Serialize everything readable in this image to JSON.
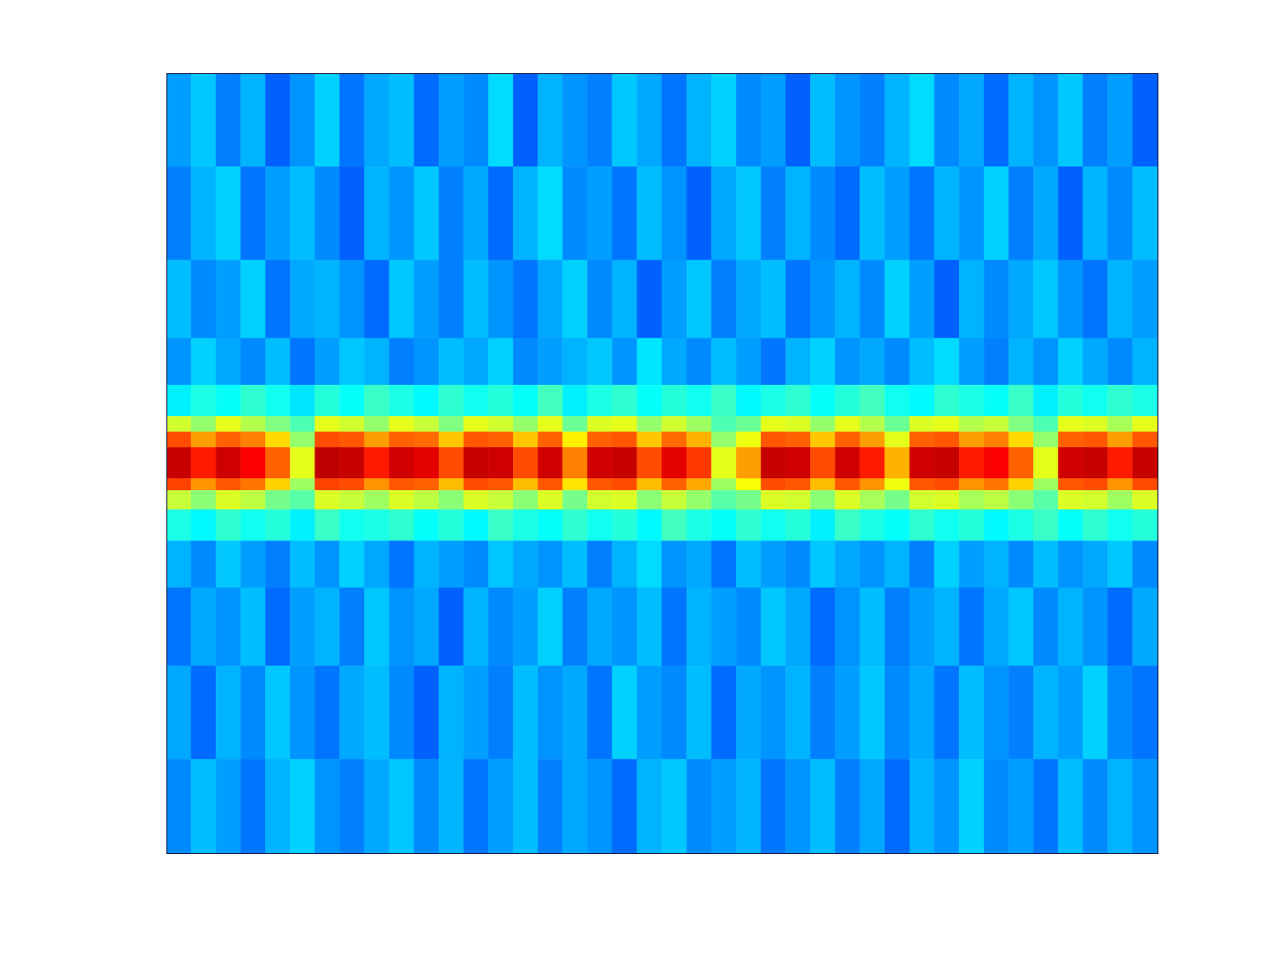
{
  "chart_data": {
    "type": "heatmap",
    "color": "jet",
    "tick_labels": false,
    "xlim": [
      0,
      40
    ],
    "ylim": [
      0,
      100
    ],
    "zlim": [
      0,
      1
    ],
    "x_edges": [
      0,
      1,
      2,
      3,
      4,
      5,
      6,
      7,
      8,
      9,
      10,
      11,
      12,
      13,
      14,
      15,
      16,
      17,
      18,
      19,
      20,
      21,
      22,
      23,
      24,
      25,
      26,
      27,
      28,
      29,
      30,
      31,
      32,
      33,
      34,
      35,
      36,
      37,
      38,
      39,
      40
    ],
    "y_edges": [
      100,
      88,
      76,
      66,
      60,
      56,
      54,
      52,
      48,
      46.5,
      44,
      40,
      34,
      24,
      12,
      0
    ],
    "z": [
      [
        0.28,
        0.32,
        0.25,
        0.3,
        0.22,
        0.27,
        0.33,
        0.24,
        0.29,
        0.31,
        0.23,
        0.28,
        0.26,
        0.34,
        0.22,
        0.3,
        0.27,
        0.25,
        0.32,
        0.29,
        0.24,
        0.3,
        0.33,
        0.26,
        0.28,
        0.22,
        0.31,
        0.27,
        0.25,
        0.3,
        0.34,
        0.26,
        0.29,
        0.23,
        0.3,
        0.27,
        0.32,
        0.25,
        0.28,
        0.22
      ],
      [
        0.25,
        0.3,
        0.33,
        0.24,
        0.28,
        0.31,
        0.26,
        0.22,
        0.3,
        0.27,
        0.32,
        0.25,
        0.29,
        0.23,
        0.3,
        0.34,
        0.26,
        0.28,
        0.24,
        0.31,
        0.27,
        0.22,
        0.29,
        0.32,
        0.25,
        0.3,
        0.26,
        0.23,
        0.31,
        0.28,
        0.24,
        0.3,
        0.27,
        0.33,
        0.25,
        0.29,
        0.22,
        0.3,
        0.26,
        0.31
      ],
      [
        0.31,
        0.26,
        0.28,
        0.33,
        0.24,
        0.29,
        0.3,
        0.27,
        0.23,
        0.32,
        0.28,
        0.25,
        0.31,
        0.27,
        0.24,
        0.29,
        0.33,
        0.26,
        0.3,
        0.22,
        0.28,
        0.32,
        0.25,
        0.29,
        0.31,
        0.24,
        0.27,
        0.3,
        0.26,
        0.33,
        0.28,
        0.22,
        0.3,
        0.26,
        0.29,
        0.32,
        0.27,
        0.24,
        0.3,
        0.28
      ],
      [
        0.27,
        0.33,
        0.29,
        0.26,
        0.31,
        0.24,
        0.28,
        0.32,
        0.3,
        0.25,
        0.27,
        0.31,
        0.29,
        0.33,
        0.26,
        0.28,
        0.3,
        0.32,
        0.27,
        0.35,
        0.29,
        0.26,
        0.31,
        0.28,
        0.24,
        0.3,
        0.33,
        0.27,
        0.29,
        0.26,
        0.31,
        0.34,
        0.28,
        0.25,
        0.3,
        0.27,
        0.33,
        0.29,
        0.26,
        0.3
      ],
      [
        0.36,
        0.4,
        0.38,
        0.42,
        0.39,
        0.35,
        0.41,
        0.38,
        0.43,
        0.4,
        0.37,
        0.42,
        0.39,
        0.41,
        0.38,
        0.44,
        0.36,
        0.4,
        0.42,
        0.38,
        0.41,
        0.39,
        0.43,
        0.37,
        0.4,
        0.42,
        0.38,
        0.41,
        0.44,
        0.39,
        0.37,
        0.42,
        0.4,
        0.38,
        0.43,
        0.36,
        0.41,
        0.39,
        0.42,
        0.4
      ],
      [
        0.58,
        0.52,
        0.6,
        0.55,
        0.5,
        0.45,
        0.6,
        0.58,
        0.52,
        0.6,
        0.57,
        0.5,
        0.6,
        0.58,
        0.52,
        0.6,
        0.48,
        0.59,
        0.6,
        0.52,
        0.58,
        0.53,
        0.45,
        0.48,
        0.6,
        0.59,
        0.52,
        0.6,
        0.55,
        0.48,
        0.59,
        0.6,
        0.55,
        0.57,
        0.5,
        0.45,
        0.6,
        0.59,
        0.54,
        0.6
      ],
      [
        0.8,
        0.72,
        0.78,
        0.75,
        0.66,
        0.52,
        0.8,
        0.79,
        0.72,
        0.78,
        0.77,
        0.68,
        0.79,
        0.78,
        0.68,
        0.78,
        0.64,
        0.78,
        0.79,
        0.68,
        0.77,
        0.7,
        0.52,
        0.61,
        0.79,
        0.78,
        0.68,
        0.78,
        0.72,
        0.6,
        0.78,
        0.79,
        0.72,
        0.75,
        0.66,
        0.52,
        0.78,
        0.79,
        0.72,
        0.79
      ],
      [
        0.93,
        0.85,
        0.92,
        0.88,
        0.78,
        0.6,
        0.94,
        0.93,
        0.85,
        0.92,
        0.9,
        0.8,
        0.93,
        0.92,
        0.8,
        0.92,
        0.75,
        0.92,
        0.93,
        0.8,
        0.9,
        0.82,
        0.6,
        0.72,
        0.93,
        0.92,
        0.8,
        0.92,
        0.85,
        0.7,
        0.92,
        0.93,
        0.85,
        0.88,
        0.78,
        0.6,
        0.92,
        0.93,
        0.85,
        0.93
      ],
      [
        0.81,
        0.73,
        0.79,
        0.76,
        0.67,
        0.53,
        0.81,
        0.8,
        0.73,
        0.79,
        0.78,
        0.69,
        0.8,
        0.79,
        0.69,
        0.79,
        0.65,
        0.79,
        0.8,
        0.69,
        0.78,
        0.71,
        0.53,
        0.62,
        0.8,
        0.79,
        0.69,
        0.79,
        0.73,
        0.61,
        0.79,
        0.8,
        0.73,
        0.76,
        0.67,
        0.53,
        0.79,
        0.8,
        0.73,
        0.8
      ],
      [
        0.57,
        0.51,
        0.59,
        0.56,
        0.49,
        0.46,
        0.59,
        0.57,
        0.53,
        0.59,
        0.56,
        0.51,
        0.59,
        0.57,
        0.51,
        0.59,
        0.49,
        0.58,
        0.59,
        0.51,
        0.57,
        0.52,
        0.46,
        0.49,
        0.59,
        0.58,
        0.51,
        0.59,
        0.54,
        0.49,
        0.58,
        0.59,
        0.54,
        0.56,
        0.51,
        0.46,
        0.59,
        0.58,
        0.53,
        0.59
      ],
      [
        0.4,
        0.37,
        0.42,
        0.39,
        0.41,
        0.36,
        0.43,
        0.39,
        0.4,
        0.42,
        0.38,
        0.41,
        0.37,
        0.43,
        0.4,
        0.38,
        0.42,
        0.39,
        0.41,
        0.37,
        0.44,
        0.4,
        0.38,
        0.42,
        0.39,
        0.41,
        0.36,
        0.43,
        0.4,
        0.38,
        0.42,
        0.39,
        0.41,
        0.37,
        0.4,
        0.43,
        0.38,
        0.42,
        0.39,
        0.41
      ],
      [
        0.3,
        0.26,
        0.32,
        0.28,
        0.25,
        0.31,
        0.27,
        0.33,
        0.29,
        0.24,
        0.3,
        0.28,
        0.26,
        0.32,
        0.29,
        0.27,
        0.31,
        0.25,
        0.3,
        0.34,
        0.27,
        0.29,
        0.24,
        0.31,
        0.28,
        0.26,
        0.32,
        0.29,
        0.27,
        0.3,
        0.25,
        0.33,
        0.28,
        0.3,
        0.26,
        0.31,
        0.27,
        0.29,
        0.32,
        0.26
      ],
      [
        0.24,
        0.29,
        0.27,
        0.31,
        0.23,
        0.28,
        0.3,
        0.25,
        0.32,
        0.27,
        0.29,
        0.22,
        0.3,
        0.26,
        0.28,
        0.33,
        0.25,
        0.29,
        0.27,
        0.31,
        0.24,
        0.3,
        0.28,
        0.26,
        0.32,
        0.29,
        0.23,
        0.27,
        0.31,
        0.25,
        0.28,
        0.3,
        0.24,
        0.29,
        0.32,
        0.26,
        0.3,
        0.27,
        0.23,
        0.29
      ],
      [
        0.29,
        0.23,
        0.3,
        0.26,
        0.32,
        0.27,
        0.24,
        0.29,
        0.31,
        0.26,
        0.22,
        0.3,
        0.28,
        0.25,
        0.31,
        0.27,
        0.29,
        0.24,
        0.33,
        0.28,
        0.26,
        0.31,
        0.23,
        0.29,
        0.27,
        0.3,
        0.25,
        0.28,
        0.32,
        0.26,
        0.29,
        0.24,
        0.31,
        0.27,
        0.25,
        0.3,
        0.28,
        0.33,
        0.26,
        0.24
      ],
      [
        0.26,
        0.31,
        0.28,
        0.24,
        0.3,
        0.33,
        0.27,
        0.25,
        0.29,
        0.32,
        0.26,
        0.3,
        0.24,
        0.28,
        0.31,
        0.25,
        0.29,
        0.27,
        0.23,
        0.3,
        0.32,
        0.26,
        0.28,
        0.3,
        0.24,
        0.27,
        0.31,
        0.25,
        0.29,
        0.23,
        0.3,
        0.27,
        0.33,
        0.26,
        0.28,
        0.24,
        0.31,
        0.26,
        0.3,
        0.27
      ]
    ]
  }
}
